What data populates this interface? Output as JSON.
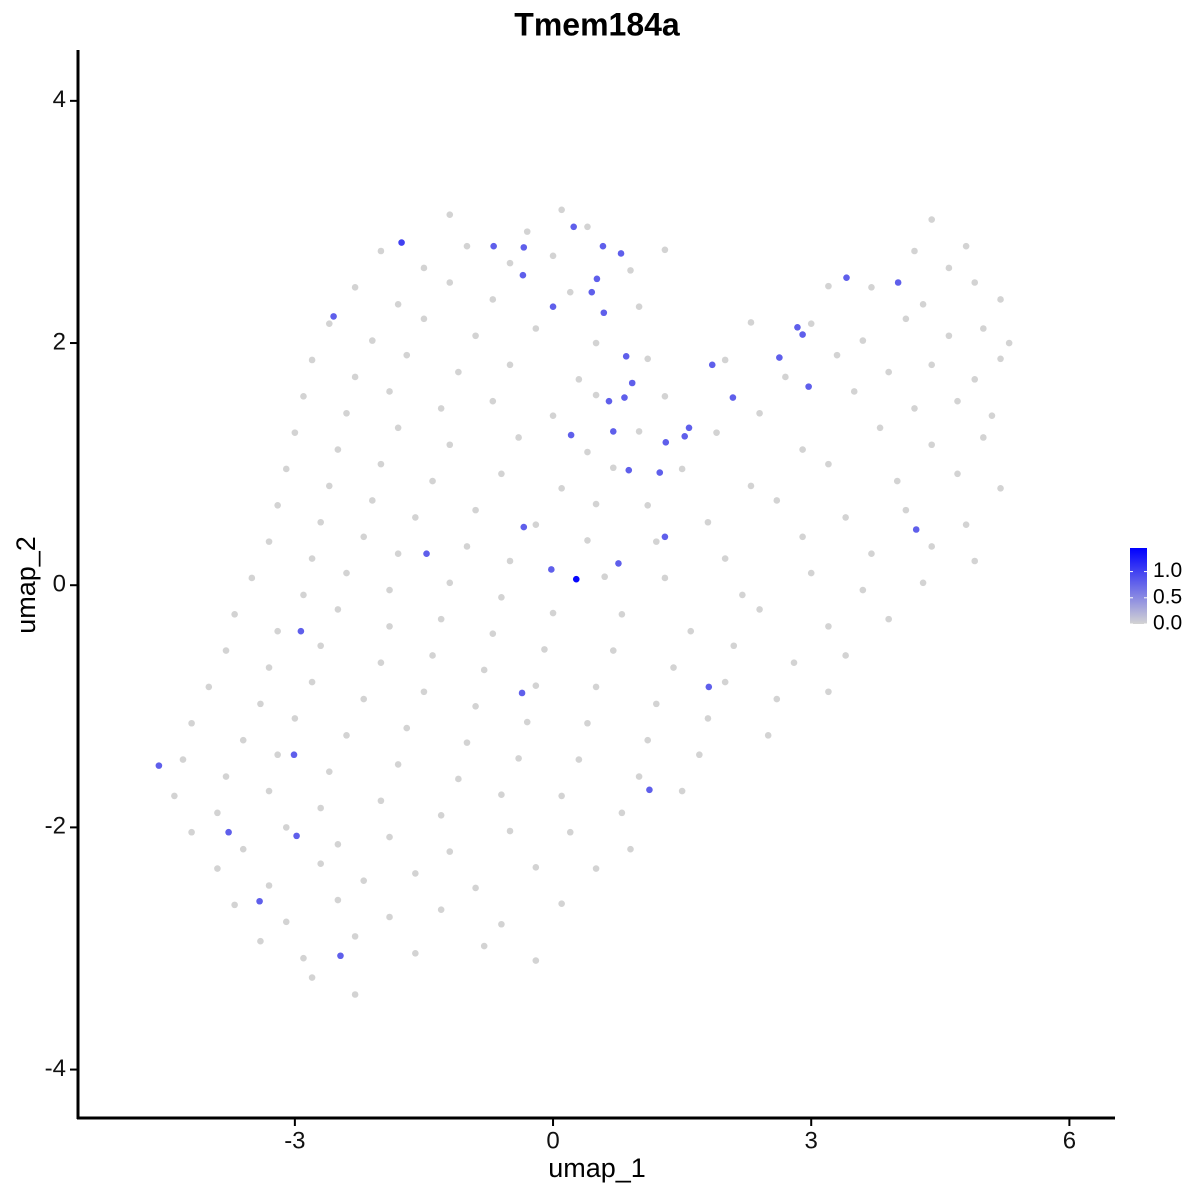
{
  "chart_data": {
    "type": "scatter",
    "title": "Tmem184a",
    "x_label": "umap_1",
    "y_label": "umap_2",
    "xlim": [
      -5.52,
      6.53
    ],
    "ylim": [
      -4.4,
      4.42
    ],
    "xticks": [
      -3,
      0,
      3,
      6
    ],
    "yticks": [
      -4,
      -2,
      0,
      2,
      4
    ],
    "low_color": "#d3d3d3",
    "high_color": "#0000ff",
    "color_lim": [
      0,
      1.45
    ],
    "color_ticks": [
      {
        "value": 0,
        "label": "0.0"
      },
      {
        "value": 0.5,
        "label": "0.5"
      },
      {
        "value": 1,
        "label": "1.0"
      }
    ],
    "grid": false,
    "x": [
      -1.2,
      -0.3,
      0.1,
      0.4,
      4.4,
      -2.0,
      -1.5,
      -1.0,
      -0.5,
      0.0,
      0.9,
      1.3,
      4.2,
      4.6,
      4.8,
      -2.3,
      -1.8,
      -1.2,
      -0.7,
      0.2,
      1.0,
      3.2,
      3.7,
      4.3,
      4.9,
      5.2,
      -2.6,
      -2.1,
      -1.5,
      -0.9,
      -0.2,
      0.5,
      2.3,
      3.0,
      3.6,
      4.1,
      4.6,
      5.0,
      5.3,
      -2.8,
      -2.3,
      -1.7,
      -1.1,
      -0.5,
      0.3,
      1.1,
      2.0,
      2.7,
      3.3,
      3.9,
      4.4,
      4.9,
      5.2,
      -2.9,
      -2.4,
      -1.9,
      -1.3,
      -0.7,
      0.0,
      0.5,
      1.3,
      2.4,
      3.5,
      4.2,
      4.7,
      5.1,
      -3.0,
      -2.5,
      -1.8,
      -1.2,
      -0.4,
      0.4,
      1.0,
      1.9,
      2.9,
      3.8,
      4.4,
      5.0,
      -3.1,
      -2.6,
      -2.0,
      -1.4,
      -0.6,
      0.1,
      0.7,
      1.5,
      2.3,
      3.2,
      4.0,
      4.7,
      5.2,
      -3.2,
      -2.7,
      -2.1,
      -1.6,
      -0.9,
      -0.2,
      0.5,
      1.1,
      1.8,
      2.6,
      3.4,
      4.1,
      4.8,
      -3.3,
      -2.8,
      -2.2,
      -1.8,
      -1.0,
      -0.5,
      0.4,
      1.2,
      2.0,
      2.9,
      3.7,
      4.4,
      4.9,
      -3.5,
      -2.9,
      -2.4,
      -1.9,
      -1.2,
      -0.6,
      0.6,
      1.3,
      2.2,
      3.0,
      3.6,
      4.3,
      -3.7,
      -3.2,
      -2.5,
      -1.9,
      -1.3,
      -0.7,
      0.0,
      0.8,
      1.6,
      2.4,
      3.2,
      3.9,
      -3.8,
      -3.3,
      -2.7,
      -2.0,
      -1.4,
      -0.8,
      -0.1,
      0.7,
      1.4,
      2.1,
      2.8,
      3.4,
      -4.0,
      -3.4,
      -2.8,
      -2.2,
      -1.5,
      -0.9,
      -0.2,
      0.5,
      1.2,
      2.0,
      2.6,
      3.2,
      -4.2,
      -3.6,
      -3.0,
      -2.4,
      -1.7,
      -1.0,
      -0.3,
      0.4,
      1.1,
      1.8,
      2.5,
      -4.3,
      -3.8,
      -3.2,
      -2.6,
      -1.8,
      -1.1,
      -0.4,
      0.3,
      1.0,
      1.7,
      -4.4,
      -3.9,
      -3.3,
      -2.7,
      -2.0,
      -1.3,
      -0.6,
      0.1,
      0.8,
      1.5,
      -4.2,
      -3.6,
      -3.1,
      -2.5,
      -1.9,
      -1.2,
      -0.5,
      0.2,
      0.9,
      -3.9,
      -3.3,
      -2.7,
      -2.2,
      -1.6,
      -0.9,
      -0.2,
      0.5,
      -3.7,
      -3.1,
      -2.5,
      -1.9,
      -1.3,
      -0.6,
      0.1,
      -3.4,
      -2.9,
      -2.3,
      -1.6,
      -0.8,
      -0.2,
      -2.8,
      -2.3,
      -1.76,
      -0.69,
      -0.34,
      0.24,
      0.58,
      0.79,
      -0.35,
      0.51,
      0.45,
      0.0,
      0.59,
      -2.55,
      3.41,
      4.01,
      2.84,
      2.9,
      2.63,
      1.85,
      0.85,
      0.92,
      0.83,
      0.65,
      2.09,
      2.97,
      0.7,
      0.21,
      1.58,
      1.53,
      1.31,
      1.24,
      0.88,
      4.22,
      1.3,
      -0.34,
      -1.47,
      -0.02,
      0.76,
      0.27,
      -2.93,
      -0.36,
      1.81,
      -4.58,
      -3.01,
      1.12,
      -3.77,
      -2.98,
      -3.41,
      -2.47
    ],
    "y": [
      3.06,
      2.92,
      3.1,
      2.96,
      3.02,
      2.76,
      2.62,
      2.8,
      2.66,
      2.72,
      2.6,
      2.77,
      2.76,
      2.62,
      2.8,
      2.46,
      2.32,
      2.5,
      2.36,
      2.42,
      2.3,
      2.47,
      2.46,
      2.32,
      2.5,
      2.36,
      2.16,
      2.02,
      2.2,
      2.06,
      2.12,
      2.0,
      2.17,
      2.16,
      2.02,
      2.2,
      2.06,
      2.12,
      2.0,
      1.86,
      1.72,
      1.9,
      1.76,
      1.82,
      1.7,
      1.87,
      1.86,
      1.72,
      1.9,
      1.76,
      1.82,
      1.7,
      1.87,
      1.56,
      1.42,
      1.6,
      1.46,
      1.52,
      1.4,
      1.57,
      1.56,
      1.42,
      1.6,
      1.46,
      1.52,
      1.4,
      1.26,
      1.12,
      1.3,
      1.16,
      1.22,
      1.1,
      1.27,
      1.26,
      1.12,
      1.3,
      1.16,
      1.22,
      0.96,
      0.82,
      1.0,
      0.86,
      0.92,
      0.8,
      0.97,
      0.96,
      0.82,
      1.0,
      0.86,
      0.92,
      0.8,
      0.66,
      0.52,
      0.7,
      0.56,
      0.62,
      0.5,
      0.67,
      0.66,
      0.52,
      0.7,
      0.56,
      0.62,
      0.5,
      0.36,
      0.22,
      0.4,
      0.26,
      0.32,
      0.2,
      0.37,
      0.36,
      0.22,
      0.4,
      0.26,
      0.32,
      0.2,
      0.06,
      -0.08,
      0.1,
      -0.04,
      0.02,
      -0.1,
      0.07,
      0.06,
      -0.08,
      0.1,
      -0.04,
      0.02,
      -0.24,
      -0.38,
      -0.2,
      -0.34,
      -0.28,
      -0.4,
      -0.23,
      -0.24,
      -0.38,
      -0.2,
      -0.34,
      -0.28,
      -0.54,
      -0.68,
      -0.5,
      -0.64,
      -0.58,
      -0.7,
      -0.53,
      -0.54,
      -0.68,
      -0.5,
      -0.64,
      -0.58,
      -0.84,
      -0.98,
      -0.8,
      -0.94,
      -0.88,
      -1.0,
      -0.83,
      -0.84,
      -0.98,
      -0.8,
      -0.94,
      -0.88,
      -1.14,
      -1.28,
      -1.1,
      -1.24,
      -1.18,
      -1.3,
      -1.13,
      -1.14,
      -1.28,
      -1.1,
      -1.24,
      -1.44,
      -1.58,
      -1.4,
      -1.54,
      -1.48,
      -1.6,
      -1.43,
      -1.44,
      -1.58,
      -1.4,
      -1.74,
      -1.88,
      -1.7,
      -1.84,
      -1.78,
      -1.9,
      -1.73,
      -1.74,
      -1.88,
      -1.7,
      -2.04,
      -2.18,
      -2.0,
      -2.14,
      -2.08,
      -2.2,
      -2.03,
      -2.04,
      -2.18,
      -2.34,
      -2.48,
      -2.3,
      -2.44,
      -2.38,
      -2.5,
      -2.33,
      -2.34,
      -2.64,
      -2.78,
      -2.6,
      -2.74,
      -2.68,
      -2.8,
      -2.63,
      -2.94,
      -3.08,
      -2.9,
      -3.04,
      -2.98,
      -3.1,
      -3.24,
      -3.38,
      2.83,
      2.8,
      2.79,
      2.96,
      2.8,
      2.74,
      2.56,
      2.53,
      2.42,
      2.3,
      2.25,
      2.22,
      2.54,
      2.5,
      2.13,
      2.07,
      1.88,
      1.82,
      1.89,
      1.67,
      1.55,
      1.52,
      1.55,
      1.64,
      1.27,
      1.24,
      1.3,
      1.23,
      1.18,
      0.93,
      0.95,
      0.46,
      0.4,
      0.48,
      0.26,
      0.13,
      0.18,
      0.05,
      -0.38,
      -0.89,
      -0.84,
      -1.49,
      -1.4,
      -1.69,
      -2.04,
      -2.07,
      -2.61,
      -3.06
    ],
    "values": [
      0,
      0,
      0,
      0,
      0,
      0,
      0,
      0,
      0,
      0,
      0,
      0,
      0,
      0,
      0,
      0,
      0,
      0,
      0,
      0,
      0,
      0,
      0,
      0,
      0,
      0,
      0,
      0,
      0,
      0,
      0,
      0,
      0,
      0,
      0,
      0,
      0,
      0,
      0,
      0,
      0,
      0,
      0,
      0,
      0,
      0,
      0,
      0,
      0,
      0,
      0,
      0,
      0,
      0,
      0,
      0,
      0,
      0,
      0,
      0,
      0,
      0,
      0,
      0,
      0,
      0,
      0,
      0,
      0,
      0,
      0,
      0,
      0,
      0,
      0,
      0,
      0,
      0,
      0,
      0,
      0,
      0,
      0,
      0,
      0,
      0,
      0,
      0,
      0,
      0,
      0,
      0,
      0,
      0,
      0,
      0,
      0,
      0,
      0,
      0,
      0,
      0,
      0,
      0,
      0,
      0,
      0,
      0,
      0,
      0,
      0,
      0,
      0,
      0,
      0,
      0,
      0,
      0,
      0,
      0,
      0,
      0,
      0,
      0,
      0,
      0,
      0,
      0,
      0,
      0,
      0,
      0,
      0,
      0,
      0,
      0,
      0,
      0,
      0,
      0,
      0,
      0,
      0,
      0,
      0,
      0,
      0,
      0,
      0,
      0,
      0,
      0,
      0,
      0,
      0,
      0,
      0,
      0,
      0,
      0,
      0,
      0,
      0,
      0,
      0,
      0,
      0,
      0,
      0,
      0,
      0,
      0,
      0,
      0,
      0,
      0,
      0,
      0,
      0,
      0,
      0,
      0,
      0,
      0,
      0,
      0,
      0,
      0,
      0,
      0,
      0,
      0,
      0,
      0,
      0,
      0,
      0,
      0,
      0,
      0,
      0,
      0,
      0,
      0,
      0,
      0,
      0,
      0,
      0,
      0,
      0,
      0,
      0,
      0,
      0,
      0,
      0,
      0,
      0,
      0,
      0,
      0,
      0,
      0,
      0,
      0,
      0,
      0,
      1.0,
      0.8,
      0.8,
      0.8,
      0.8,
      0.8,
      0.8,
      0.8,
      0.8,
      0.8,
      0.8,
      0.8,
      0.8,
      0.8,
      0.8,
      0.8,
      0.8,
      0.8,
      0.8,
      0.8,
      0.8,
      0.8,
      0.8,
      0.8,
      0.8,
      0.8,
      0.8,
      0.8,
      0.8,
      0.8,
      0.8,
      0.8,
      0.8,
      0.8,
      0.8,
      0.8,
      0.8,
      1.4,
      0.8,
      0.8,
      0.8,
      0.8,
      0.8,
      0.8,
      0.8,
      0.8,
      0.8,
      0.8
    ]
  }
}
